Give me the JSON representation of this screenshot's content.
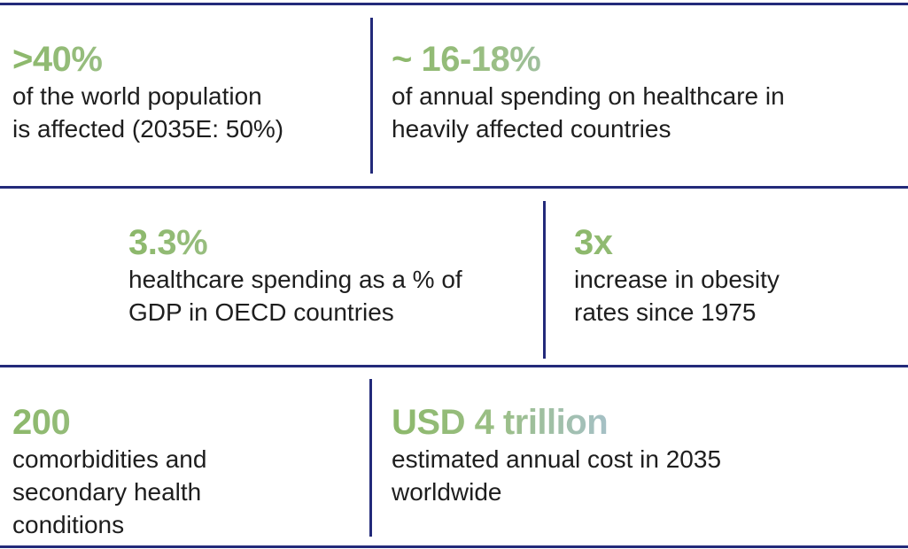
{
  "rows": [
    {
      "stats": [
        {
          "figure": ">40%",
          "description": [
            "of the world population",
            "is affected (2035E: 50%)"
          ]
        },
        {
          "figure": "~ 16-18%",
          "description": [
            "of annual spending on healthcare in",
            "heavily affected countries"
          ]
        }
      ]
    },
    {
      "stats": [
        {
          "figure": "3.3%",
          "description": [
            "healthcare spending as a % of",
            "GDP in OECD countries"
          ]
        },
        {
          "figure": "3x",
          "description": [
            "increase in obesity",
            "rates since 1975"
          ]
        }
      ]
    },
    {
      "stats": [
        {
          "figure": "200",
          "description": [
            "comorbidities and",
            "secondary health",
            "conditions"
          ]
        },
        {
          "figure": "USD 4 trillion",
          "description": [
            "estimated annual cost in 2035",
            "worldwide"
          ]
        }
      ]
    }
  ]
}
